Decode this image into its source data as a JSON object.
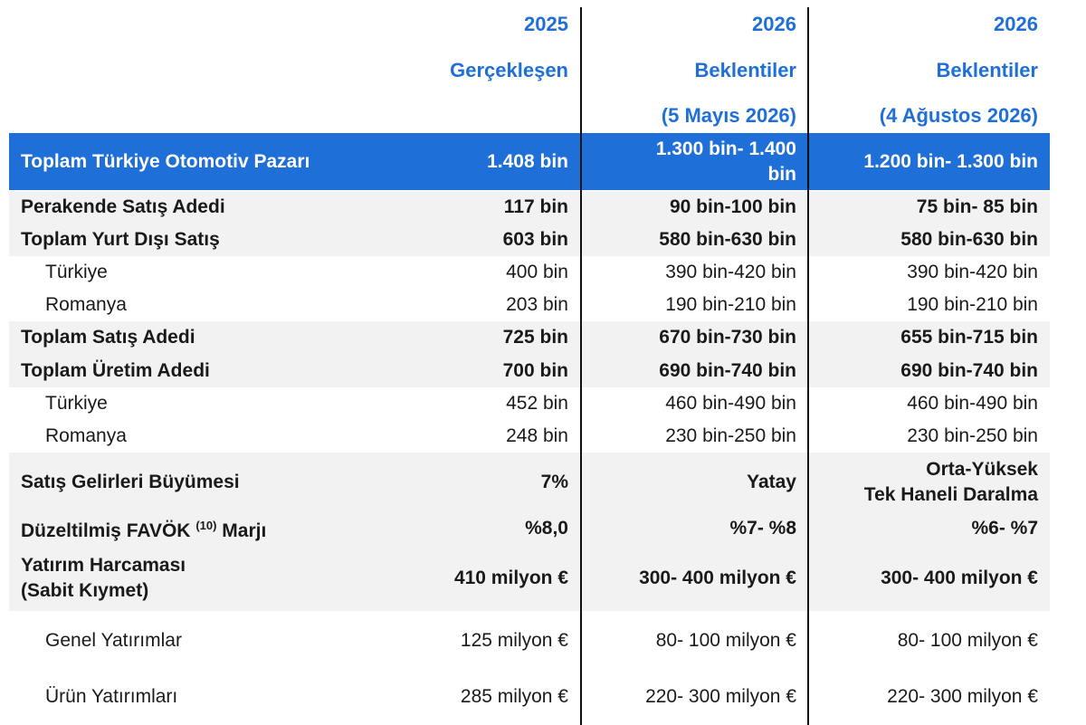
{
  "header": {
    "columns": [
      [
        "2025",
        "Gerçekleşen"
      ],
      [
        "2026",
        "Beklentiler",
        "(5 Mayıs 2026)"
      ],
      [
        "2026",
        "Beklentiler",
        "(4 Ağustos 2026)"
      ]
    ]
  },
  "table": {
    "rows": [
      {
        "label": [
          "Toplam Türkiye Otomotiv Pazarı"
        ],
        "values": [
          [
            "1.408 bin"
          ],
          [
            "1.300 bin- 1.400",
            "bin"
          ],
          [
            "1.200 bin- 1.300 bin"
          ]
        ]
      },
      {
        "label": [
          "Perakende Satış Adedi"
        ],
        "values": [
          [
            "117 bin"
          ],
          [
            "90 bin-100 bin"
          ],
          [
            "75 bin- 85 bin"
          ]
        ]
      },
      {
        "label": [
          "Toplam Yurt Dışı Satış"
        ],
        "values": [
          [
            "603 bin"
          ],
          [
            "580 bin-630 bin"
          ],
          [
            "580 bin-630 bin"
          ]
        ]
      },
      {
        "label": [
          "Türkiye"
        ],
        "values": [
          [
            "400 bin"
          ],
          [
            "390 bin-420 bin"
          ],
          [
            "390 bin-420 bin"
          ]
        ]
      },
      {
        "label": [
          "Romanya"
        ],
        "values": [
          [
            "203 bin"
          ],
          [
            "190 bin-210 bin"
          ],
          [
            "190 bin-210 bin"
          ]
        ]
      },
      {
        "label": [
          "Toplam Satış Adedi"
        ],
        "values": [
          [
            "725 bin"
          ],
          [
            "670 bin-730 bin"
          ],
          [
            "655 bin-715 bin"
          ]
        ]
      },
      {
        "label": [
          "Toplam Üretim Adedi"
        ],
        "values": [
          [
            "700 bin"
          ],
          [
            "690 bin-740 bin"
          ],
          [
            "690 bin-740 bin"
          ]
        ]
      },
      {
        "label": [
          "Türkiye"
        ],
        "values": [
          [
            "452 bin"
          ],
          [
            "460 bin-490 bin"
          ],
          [
            "460 bin-490 bin"
          ]
        ]
      },
      {
        "label": [
          "Romanya"
        ],
        "values": [
          [
            "248 bin"
          ],
          [
            "230 bin-250 bin"
          ],
          [
            "230 bin-250 bin"
          ]
        ]
      },
      {
        "label": [
          "Satış Gelirleri Büyümesi"
        ],
        "values": [
          [
            "7%"
          ],
          [
            "Yatay"
          ],
          [
            "Orta-Yüksek",
            "Tek Haneli Daralma"
          ]
        ]
      },
      {
        "label": [
          "Düzeltilmiş FAVÖK",
          "(10)",
          "Marjı"
        ],
        "values": [
          [
            "%8,0"
          ],
          [
            "%7- %8"
          ],
          [
            "%6- %7"
          ]
        ]
      },
      {
        "label": [
          "Yatırım Harcaması",
          "(Sabit Kıymet)"
        ],
        "values": [
          [
            "410 milyon €"
          ],
          [
            "300- 400 milyon €"
          ],
          [
            "300- 400 milyon €"
          ]
        ]
      },
      {
        "label": [
          "Genel Yatırımlar"
        ],
        "values": [
          [
            "125 milyon €"
          ],
          [
            "80- 100 milyon €"
          ],
          [
            "80- 100 milyon €"
          ]
        ]
      },
      {
        "label": [
          "Ürün Yatırımları"
        ],
        "values": [
          [
            "285 milyon €"
          ],
          [
            "220- 300 milyon €"
          ],
          [
            "220- 300 milyon €"
          ]
        ]
      }
    ]
  }
}
